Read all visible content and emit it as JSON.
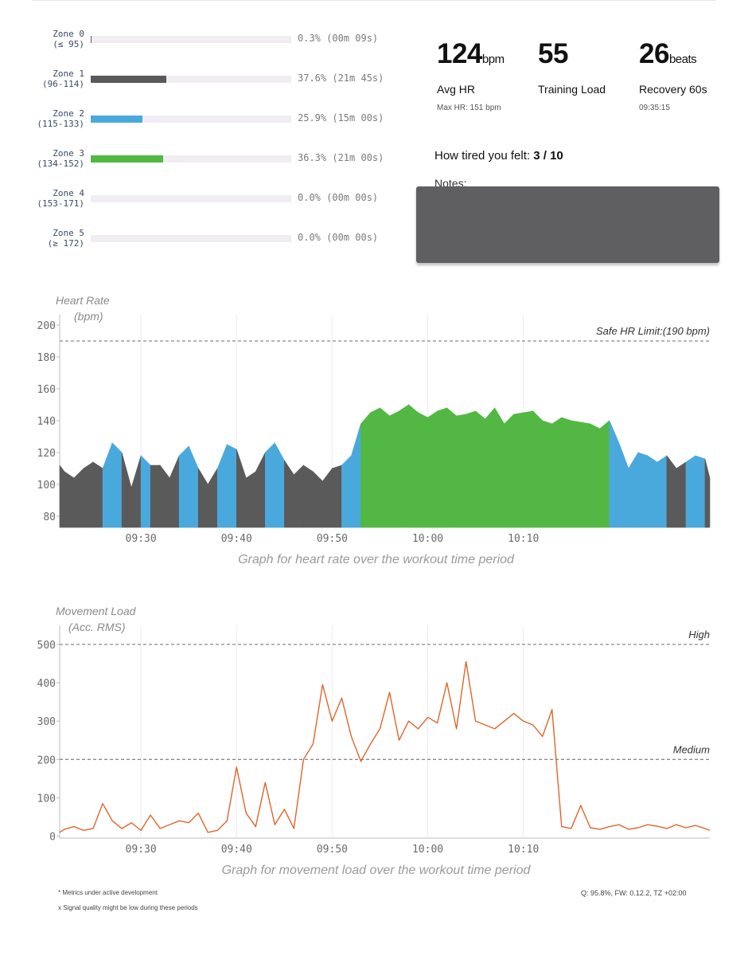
{
  "zones": [
    {
      "name": "Zone 0",
      "range": "(≤ 95)",
      "pct_text": "0.3% (00m 09s)",
      "fraction": 0.003,
      "color": "#5a5a5a"
    },
    {
      "name": "Zone 1",
      "range": "(96-114)",
      "pct_text": "37.6% (21m 45s)",
      "fraction": 0.376,
      "color": "#5a5a5a"
    },
    {
      "name": "Zone 2",
      "range": "(115-133)",
      "pct_text": "25.9% (15m 00s)",
      "fraction": 0.259,
      "color": "#4aa9dc"
    },
    {
      "name": "Zone 3",
      "range": "(134-152)",
      "pct_text": "36.3% (21m 00s)",
      "fraction": 0.363,
      "color": "#52b843"
    },
    {
      "name": "Zone 4",
      "range": "(153-171)",
      "pct_text": "0.0% (00m 00s)",
      "fraction": 0.0,
      "color": "#5a5a5a"
    },
    {
      "name": "Zone 5",
      "range": "(≥ 172)",
      "pct_text": "0.0% (00m 00s)",
      "fraction": 0.0,
      "color": "#5a5a5a"
    }
  ],
  "stats": {
    "avg_hr": {
      "value": "124",
      "unit": "bpm",
      "label": "Avg HR",
      "sub": "Max HR: 151 bpm"
    },
    "training_load": {
      "value": "55",
      "label": "Training Load"
    },
    "recovery": {
      "value": "26",
      "unit": "beats",
      "label": "Recovery 60s",
      "sub": "09:35:15"
    }
  },
  "tired": {
    "label": "How tired you felt:",
    "value": "3 / 10"
  },
  "notes": {
    "label": "Notes:"
  },
  "hr_chart": {
    "ylabel_1": "Heart Rate",
    "ylabel_2": "(bpm)",
    "limit_label": "Safe HR Limit:(190 bpm)",
    "caption": "Graph for heart rate over the workout time period"
  },
  "mv_chart": {
    "ylabel_1": "Movement Load",
    "ylabel_2": "(Acc. RMS)",
    "high_label": "High",
    "medium_label": "Medium",
    "caption": "Graph for movement load over the workout time period"
  },
  "footer": {
    "note1": "* Metrics under active development",
    "note2": "x Signal quality might be low during these periods",
    "quality": "Q: 95.8%, FW: 0.12.2, TZ +02:00"
  },
  "chart_data": [
    {
      "type": "area",
      "ylabel": "Heart Rate",
      "y_ticks": [
        80,
        100,
        120,
        140,
        160,
        180,
        200
      ],
      "ylim": [
        73,
        203
      ],
      "x_ticks": [
        "09:30",
        "09:40",
        "09:50",
        "10:00",
        "10:10"
      ],
      "x_range_min": [
        21.5,
        89.5
      ],
      "reference_lines": [
        {
          "label": "Safe HR Limit:(190 bpm)",
          "y": 190
        }
      ],
      "zone_colors": {
        "zone1": "#5a5a5a",
        "zone2": "#4aa9dc",
        "zone3": "#52b843"
      },
      "series": [
        {
          "x_min": [
            21.5,
            22,
            23,
            24,
            25,
            26,
            27,
            28,
            29,
            30,
            31,
            32,
            33,
            34,
            35,
            36,
            37,
            38,
            39,
            40,
            41,
            42,
            43,
            44,
            45,
            46,
            47,
            48,
            49,
            50,
            51,
            52,
            53,
            54,
            55,
            56,
            57,
            58,
            59,
            60,
            61,
            62,
            63,
            64,
            65,
            66,
            67,
            68,
            69,
            70,
            71,
            72,
            73,
            74,
            75,
            76,
            77,
            78,
            79,
            80,
            81,
            82,
            83,
            84,
            85,
            86,
            87,
            88,
            89,
            89.5
          ],
          "y": [
            112,
            108,
            104,
            110,
            114,
            110,
            126,
            120,
            98,
            118,
            112,
            112,
            104,
            118,
            124,
            110,
            100,
            110,
            125,
            122,
            104,
            108,
            120,
            126,
            115,
            106,
            112,
            108,
            102,
            110,
            112,
            118,
            138,
            145,
            148,
            143,
            146,
            150,
            145,
            142,
            146,
            148,
            143,
            144,
            146,
            141,
            148,
            138,
            144,
            145,
            146,
            140,
            138,
            142,
            140,
            139,
            138,
            135,
            140,
            126,
            110,
            120,
            118,
            114,
            118,
            110,
            114,
            118,
            116,
            104
          ]
        }
      ]
    },
    {
      "type": "line",
      "ylabel": "Movement Load",
      "y_ticks": [
        0,
        100,
        200,
        300,
        400,
        500
      ],
      "ylim": [
        -5,
        535
      ],
      "x_ticks": [
        "09:30",
        "09:40",
        "09:50",
        "10:00",
        "10:10"
      ],
      "x_range_min": [
        21.5,
        89.5
      ],
      "reference_lines": [
        {
          "label": "High",
          "y": 500
        },
        {
          "label": "Medium",
          "y": 200
        }
      ],
      "series": [
        {
          "x_min": [
            21.5,
            22,
            23,
            24,
            25,
            26,
            27,
            28,
            29,
            30,
            31,
            32,
            33,
            34,
            35,
            36,
            37,
            38,
            39,
            40,
            41,
            42,
            43,
            44,
            45,
            46,
            47,
            48,
            49,
            50,
            51,
            52,
            53,
            54,
            55,
            56,
            57,
            58,
            59,
            60,
            61,
            62,
            63,
            64,
            65,
            66,
            67,
            68,
            69,
            70,
            71,
            72,
            73,
            74,
            75,
            76,
            77,
            78,
            79,
            80,
            81,
            82,
            83,
            84,
            85,
            86,
            87,
            88,
            89,
            89.5
          ],
          "y": [
            10,
            18,
            25,
            15,
            20,
            85,
            40,
            20,
            35,
            15,
            55,
            20,
            30,
            40,
            35,
            60,
            10,
            15,
            40,
            180,
            60,
            25,
            140,
            30,
            70,
            20,
            200,
            240,
            395,
            300,
            360,
            260,
            195,
            240,
            280,
            375,
            250,
            300,
            280,
            310,
            295,
            400,
            280,
            455,
            300,
            290,
            280,
            300,
            320,
            300,
            290,
            260,
            330,
            25,
            20,
            80,
            22,
            18,
            25,
            30,
            18,
            22,
            30,
            26,
            20,
            30,
            22,
            28,
            20,
            15
          ]
        }
      ]
    }
  ]
}
